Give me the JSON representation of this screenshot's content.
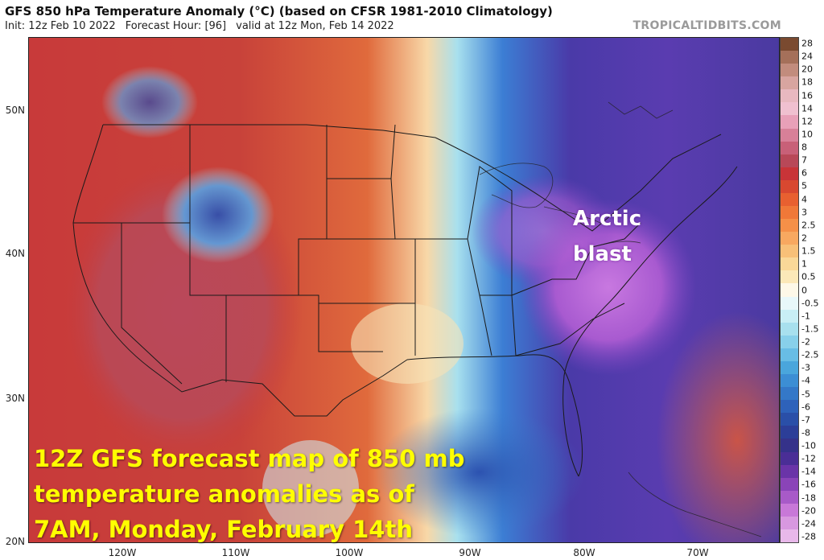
{
  "header": {
    "title": "GFS 850 hPa Temperature Anomaly (°C) (based on CFSR 1981-2010 Climatology)",
    "init": "Init: 12z Feb 10 2022",
    "forecast_hour": "Forecast Hour: [96]",
    "valid": "valid at 12z Mon, Feb 14 2022",
    "credit": "TROPICALTIDBITS.COM"
  },
  "axes": {
    "lat_labels": [
      "50N",
      "40N",
      "30N",
      "20N"
    ],
    "lon_labels": [
      "120W",
      "110W",
      "100W",
      "90W",
      "80W",
      "70W"
    ]
  },
  "colorbar": {
    "labels": [
      "28",
      "24",
      "20",
      "18",
      "16",
      "14",
      "12",
      "10",
      "8",
      "7",
      "6",
      "5",
      "4",
      "3",
      "2.5",
      "2",
      "1.5",
      "1",
      "0.5",
      "0",
      "-0.5",
      "-1",
      "-1.5",
      "-2",
      "-2.5",
      "-3",
      "-4",
      "-5",
      "-6",
      "-7",
      "-8",
      "-10",
      "-12",
      "-14",
      "-16",
      "-18",
      "-20",
      "-24",
      "-28"
    ],
    "colors": [
      "#7a4a30",
      "#a5705a",
      "#c28c7d",
      "#d8a5a0",
      "#e8b8c0",
      "#f0c0d0",
      "#e8a0b8",
      "#d88098",
      "#c86078",
      "#b84858",
      "#c83438",
      "#d84830",
      "#e86030",
      "#f07838",
      "#f59048",
      "#f8a860",
      "#f8c078",
      "#fad898",
      "#fbe8b8",
      "#fdf8e8",
      "#e8f8fa",
      "#c8eef5",
      "#a8e0ee",
      "#88d0ea",
      "#68bde5",
      "#4aa6dc",
      "#3c8ed4",
      "#3478c8",
      "#2e62ba",
      "#2a4fa8",
      "#2c3e98",
      "#35328a",
      "#4a2e96",
      "#6a34a8",
      "#8a44b8",
      "#a85ac8",
      "#c878d8",
      "#d898e0",
      "#e8b8ea"
    ]
  },
  "annotations": {
    "arctic_line1": "Arctic",
    "arctic_line2": "blast",
    "caption_line1": "12Z GFS forecast map of 850 mb",
    "caption_line2": "temperature anomalies as of",
    "caption_line3": "7AM, Monday, February 14th"
  }
}
